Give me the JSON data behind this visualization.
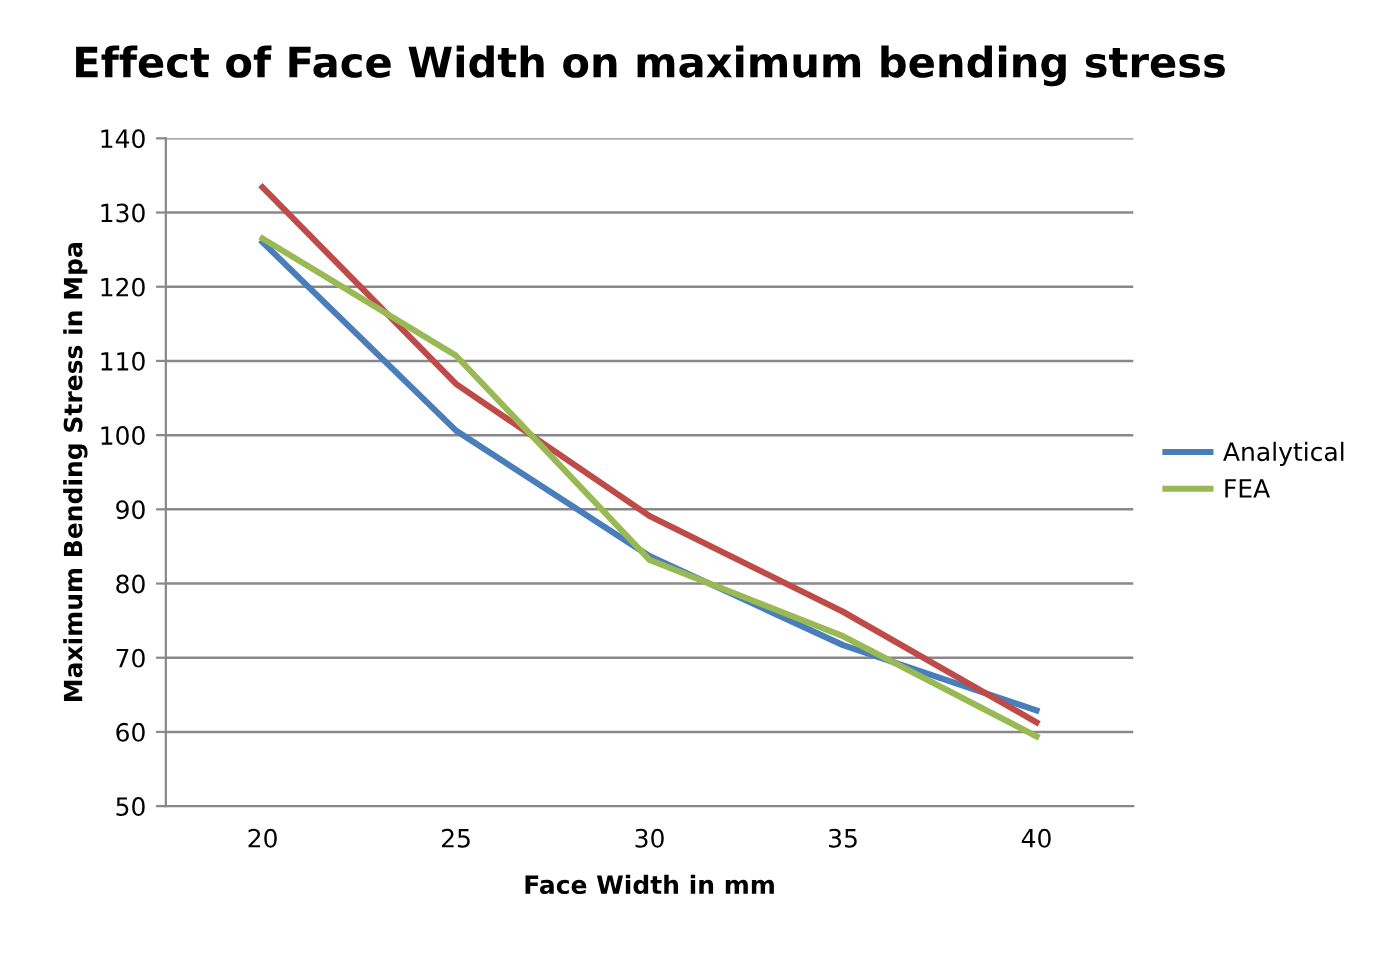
{
  "chart_data": {
    "type": "line",
    "title": "Effect of Face Width on maximum bending stress",
    "xlabel": "Face Width in mm",
    "ylabel": "Maximum Bending Stress in Mpa",
    "categories": [
      "20",
      "25",
      "30",
      "35",
      "40"
    ],
    "series": [
      {
        "name": "Analytical",
        "color": "#4a7ebb",
        "values": [
          126.0,
          100.6,
          83.7,
          71.7,
          62.9
        ]
      },
      {
        "color": "#be4b48",
        "values": [
          133.4,
          106.9,
          89.1,
          76.2,
          61.3
        ]
      },
      {
        "name": "FEA",
        "color": "#98b954",
        "values": [
          126.5,
          110.7,
          83.2,
          72.9,
          59.4
        ]
      }
    ],
    "ylim": [
      50,
      140
    ],
    "yticks": [
      50,
      60,
      70,
      80,
      90,
      100,
      110,
      120,
      130,
      140
    ],
    "grid": "y",
    "legend": "right",
    "marker": "none",
    "line_style": "solid"
  }
}
